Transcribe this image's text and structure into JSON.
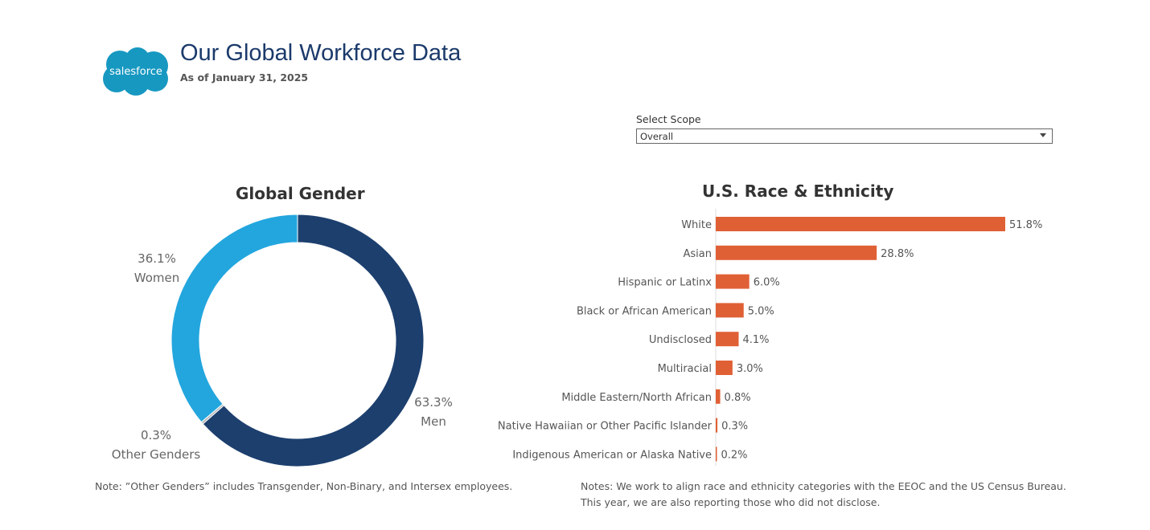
{
  "header": {
    "logo_text": "salesforce",
    "title": "Our Global Workforce Data",
    "as_of": "As of January 31, 2025"
  },
  "filter": {
    "label": "Select Scope",
    "value": "Overall"
  },
  "notes": {
    "gender": "Note: ”Other Genders” includes Transgender, Non-Binary, and Intersex employees.",
    "race_line1": "Notes: We work to align race and ethnicity categories with the EEOC and the US Census Bureau.",
    "race_line2": "This year, we are also reporting those who did not disclose."
  },
  "chart_data": [
    {
      "type": "pie",
      "title": "Global Gender",
      "donut": true,
      "slices": [
        {
          "name": "Men",
          "value": 63.3,
          "label": "63.3%",
          "color": "#1c3f6e"
        },
        {
          "name": "Other Genders",
          "value": 0.3,
          "label": "0.3%",
          "color": "#b5b5b5"
        },
        {
          "name": "Women",
          "value": 36.1,
          "label": "36.1%",
          "color": "#23a6de"
        }
      ]
    },
    {
      "type": "bar",
      "orientation": "horizontal",
      "title": "U.S. Race & Ethnicity",
      "color": "#e06035",
      "categories": [
        "White",
        "Asian",
        "Hispanic or Latinx",
        "Black or African American",
        "Undisclosed",
        "Multiracial",
        "Middle Eastern/North African",
        "Native Hawaiian or Other Pacific Islander",
        "Indigenous American or Alaska Native"
      ],
      "values": [
        51.8,
        28.8,
        6.0,
        5.0,
        4.1,
        3.0,
        0.8,
        0.3,
        0.2
      ],
      "labels": [
        "51.8%",
        "28.8%",
        "6.0%",
        "5.0%",
        "4.1%",
        "3.0%",
        "0.8%",
        "0.3%",
        "0.2%"
      ]
    }
  ]
}
